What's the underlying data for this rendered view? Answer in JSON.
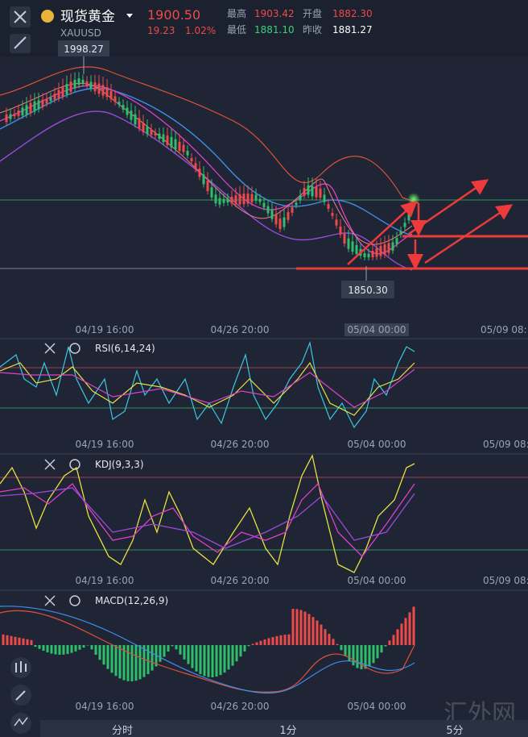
{
  "header": {
    "name": "现货黄金",
    "code": "XAUUSD",
    "price": "1900.50",
    "change": "19.23",
    "change_pct": "1.02%",
    "stats": [
      {
        "label": "最高",
        "value": "1903.42"
      },
      {
        "label": "开盘",
        "value": "1882.30"
      },
      {
        "label": "最低",
        "value": "1881.10"
      },
      {
        "label": "昨收",
        "value": "1881.27"
      }
    ]
  },
  "main": {
    "high_label": "1998.27",
    "low_label": "1850.30",
    "x_labels": [
      "04/19 16:00",
      "04/26 20:00",
      "05/04 00:00",
      "05/09 08:"
    ]
  },
  "panels": [
    {
      "title": "RSI(6,14,24)",
      "x_labels": [
        "04/19 16:00",
        "04/26 20:00",
        "05/04 00:00",
        "05/09 08:"
      ]
    },
    {
      "title": "KDJ(9,3,3)",
      "x_labels": [
        "04/19 16:00",
        "04/26 20:00",
        "05/04 00:00",
        "05/09 08:"
      ]
    },
    {
      "title": "MACD(12,26,9)",
      "x_labels": [
        "04/19 16:00",
        "04/26 20:00",
        "05/04 00:00"
      ]
    }
  ],
  "tabs": [
    "分时",
    "1分",
    "5分"
  ],
  "watermark": "汇外网"
}
